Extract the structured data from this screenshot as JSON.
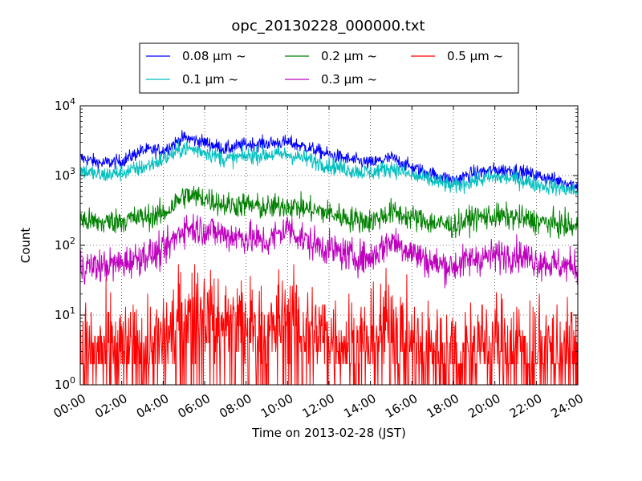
{
  "chart_data": {
    "type": "line",
    "title": "opc_20130228_000000.txt",
    "xlabel": "Time on 2013-02-28 (JST)",
    "ylabel": "Count",
    "yscale": "log",
    "ylim": [
      1,
      10000
    ],
    "xlim": [
      "00:00",
      "24:00"
    ],
    "xticks": [
      "00:00",
      "02:00",
      "04:00",
      "06:00",
      "08:00",
      "10:00",
      "12:00",
      "14:00",
      "16:00",
      "18:00",
      "20:00",
      "22:00",
      "24:00"
    ],
    "yticks": [
      {
        "value": 1,
        "base": "10",
        "exp": "0"
      },
      {
        "value": 10,
        "base": "10",
        "exp": "1"
      },
      {
        "value": 100,
        "base": "10",
        "exp": "2"
      },
      {
        "value": 1000,
        "base": "10",
        "exp": "3"
      },
      {
        "value": 10000,
        "base": "10",
        "exp": "4"
      }
    ],
    "grid": true,
    "legend_position": "top, above plot",
    "x_hours": [
      0,
      1,
      2,
      3,
      4,
      5,
      6,
      7,
      8,
      9,
      10,
      11,
      12,
      13,
      14,
      15,
      16,
      17,
      18,
      19,
      20,
      21,
      22,
      23,
      24
    ],
    "series": [
      {
        "name": "0.08 μm ~",
        "color": "#0000ff",
        "noise": 0.05,
        "values": [
          1800,
          1500,
          1600,
          2300,
          2300,
          3500,
          3000,
          2400,
          2800,
          2900,
          3000,
          2500,
          2000,
          1700,
          1500,
          1800,
          1300,
          1050,
          850,
          1100,
          1200,
          1200,
          1000,
          850,
          720
        ]
      },
      {
        "name": "0.1 μm ~",
        "color": "#00bfbf",
        "noise": 0.06,
        "values": [
          1200,
          1000,
          1100,
          1300,
          1700,
          2500,
          2200,
          1700,
          1900,
          2000,
          2000,
          1700,
          1400,
          1200,
          1100,
          1300,
          1000,
          850,
          700,
          850,
          950,
          900,
          750,
          680,
          580
        ]
      },
      {
        "name": "0.2 μm ~",
        "color": "#008000",
        "noise": 0.09,
        "values": [
          230,
          210,
          230,
          250,
          280,
          520,
          480,
          380,
          380,
          340,
          380,
          330,
          290,
          240,
          220,
          300,
          250,
          210,
          190,
          250,
          260,
          250,
          220,
          200,
          180
        ]
      },
      {
        "name": "0.3 μm ~",
        "color": "#bf00bf",
        "noise": 0.12,
        "values": [
          50,
          50,
          55,
          70,
          80,
          180,
          170,
          140,
          130,
          110,
          180,
          110,
          90,
          70,
          65,
          120,
          80,
          55,
          50,
          65,
          70,
          75,
          60,
          52,
          50
        ]
      },
      {
        "name": "0.5 μm ~",
        "color": "#ff0000",
        "noise": 0.35,
        "values": [
          3,
          3,
          3,
          3.5,
          4,
          11,
          10,
          8,
          7,
          5,
          10,
          6,
          5,
          4,
          4,
          8,
          4,
          3,
          3,
          4,
          4,
          4,
          3.5,
          3.5,
          3.5
        ]
      }
    ]
  }
}
